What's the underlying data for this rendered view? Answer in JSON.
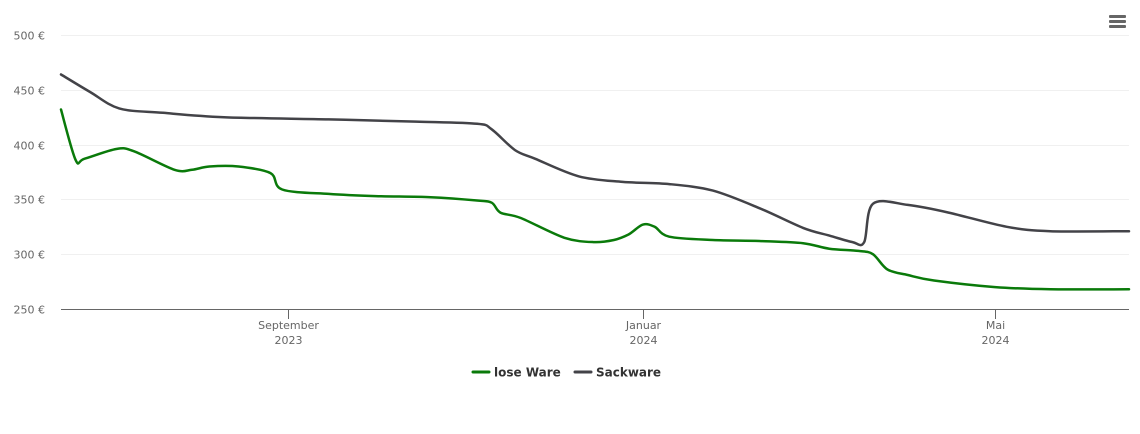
{
  "menu": {
    "icon": "hamburger-menu-icon"
  },
  "chart_data": {
    "type": "line",
    "title": "",
    "xlabel": "",
    "ylabel": "",
    "ylim": [
      250,
      500
    ],
    "xlim": [
      "2023-06-15",
      "2024-06-16"
    ],
    "grid": true,
    "legend_position": "bottom",
    "y_ticks": [
      {
        "value": 250,
        "label": "250 €"
      },
      {
        "value": 300,
        "label": "300 €"
      },
      {
        "value": 350,
        "label": "350 €"
      },
      {
        "value": 400,
        "label": "400 €"
      },
      {
        "value": 450,
        "label": "450 €"
      },
      {
        "value": 500,
        "label": "500 €"
      }
    ],
    "x_ticks": [
      {
        "date": "2023-09-01",
        "month": "September",
        "year": "2023"
      },
      {
        "date": "2024-01-01",
        "month": "Januar",
        "year": "2024"
      },
      {
        "date": "2024-05-01",
        "month": "Mai",
        "year": "2024"
      }
    ],
    "series": [
      {
        "name": "lose Ware",
        "color": "#0a7a0a",
        "points": [
          [
            "2023-06-15",
            432
          ],
          [
            "2023-06-20",
            386
          ],
          [
            "2023-06-23",
            387
          ],
          [
            "2023-07-04",
            396
          ],
          [
            "2023-07-10",
            394
          ],
          [
            "2023-07-24",
            377
          ],
          [
            "2023-07-30",
            377
          ],
          [
            "2023-08-05",
            380
          ],
          [
            "2023-08-15",
            380
          ],
          [
            "2023-08-26",
            374
          ],
          [
            "2023-08-30",
            359
          ],
          [
            "2023-09-15",
            355
          ],
          [
            "2023-10-01",
            353
          ],
          [
            "2023-10-20",
            352
          ],
          [
            "2023-11-05",
            349
          ],
          [
            "2023-11-10",
            347
          ],
          [
            "2023-11-13",
            338
          ],
          [
            "2023-11-20",
            333
          ],
          [
            "2023-12-05",
            315
          ],
          [
            "2023-12-15",
            311
          ],
          [
            "2023-12-22",
            313
          ],
          [
            "2023-12-27",
            318
          ],
          [
            "2024-01-01",
            327
          ],
          [
            "2024-01-05",
            325
          ],
          [
            "2024-01-10",
            316
          ],
          [
            "2024-01-25",
            313
          ],
          [
            "2024-02-10",
            312
          ],
          [
            "2024-02-25",
            310
          ],
          [
            "2024-03-05",
            305
          ],
          [
            "2024-03-15",
            303
          ],
          [
            "2024-03-20",
            300
          ],
          [
            "2024-03-25",
            286
          ],
          [
            "2024-04-01",
            281
          ],
          [
            "2024-04-10",
            276
          ],
          [
            "2024-05-01",
            270
          ],
          [
            "2024-05-20",
            268
          ],
          [
            "2024-06-16",
            268
          ]
        ]
      },
      {
        "name": "Sackware",
        "color": "#434348",
        "points": [
          [
            "2023-06-15",
            464
          ],
          [
            "2023-06-25",
            448
          ],
          [
            "2023-07-05",
            433
          ],
          [
            "2023-07-20",
            429
          ],
          [
            "2023-08-10",
            425
          ],
          [
            "2023-09-15",
            423
          ],
          [
            "2023-10-15",
            421
          ],
          [
            "2023-11-05",
            419
          ],
          [
            "2023-11-10",
            414
          ],
          [
            "2023-11-18",
            395
          ],
          [
            "2023-11-25",
            387
          ],
          [
            "2023-12-10",
            371
          ],
          [
            "2023-12-25",
            366
          ],
          [
            "2024-01-10",
            364
          ],
          [
            "2024-01-25",
            358
          ],
          [
            "2024-02-10",
            342
          ],
          [
            "2024-02-25",
            324
          ],
          [
            "2024-03-05",
            317
          ],
          [
            "2024-03-13",
            311
          ],
          [
            "2024-03-17",
            311
          ],
          [
            "2024-03-20",
            346
          ],
          [
            "2024-04-01",
            345
          ],
          [
            "2024-04-15",
            338
          ],
          [
            "2024-05-05",
            325
          ],
          [
            "2024-05-20",
            321
          ],
          [
            "2024-06-16",
            321
          ]
        ]
      }
    ]
  }
}
